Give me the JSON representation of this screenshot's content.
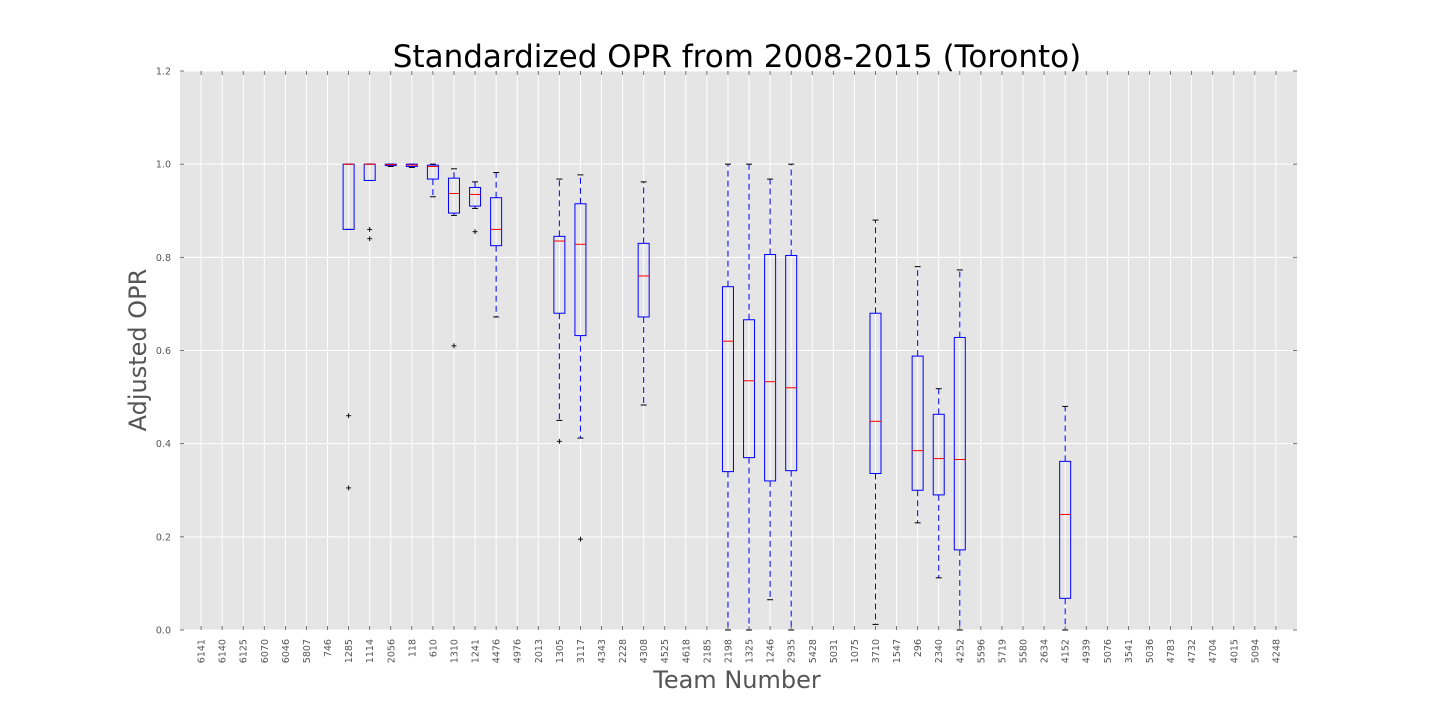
{
  "chart_data": {
    "type": "box",
    "title": "Standardized OPR from 2008-2015 (Toronto)",
    "xlabel": "Team Number",
    "ylabel": "Adjusted OPR",
    "ylim": [
      0.0,
      1.2
    ],
    "yticks": [
      "0.0",
      "0.2",
      "0.4",
      "0.6",
      "0.8",
      "1.0",
      "1.2"
    ],
    "grid": true,
    "categories": [
      "6141",
      "6140",
      "6125",
      "6070",
      "6046",
      "5807",
      "746",
      "1285",
      "1114",
      "2056",
      "118",
      "610",
      "1310",
      "1241",
      "4476",
      "4976",
      "2013",
      "1305",
      "3117",
      "4343",
      "2228",
      "4308",
      "4525",
      "4618",
      "2185",
      "2198",
      "1325",
      "1246",
      "2935",
      "5428",
      "5031",
      "1075",
      "3710",
      "1547",
      "296",
      "2340",
      "4252",
      "5596",
      "5719",
      "5580",
      "2634",
      "4152",
      "4939",
      "5076",
      "3541",
      "5036",
      "4783",
      "4732",
      "4704",
      "4015",
      "5094",
      "4248"
    ],
    "boxes": [
      {
        "team": "1285",
        "whislo": 0.86,
        "q1": 0.86,
        "med": 1.0,
        "q3": 1.0,
        "whishi": 1.0,
        "fliers": [
          0.46,
          0.305
        ]
      },
      {
        "team": "1114",
        "whislo": 0.965,
        "q1": 0.965,
        "med": 1.0,
        "q3": 1.0,
        "whishi": 1.0,
        "fliers": [
          0.86,
          0.84
        ]
      },
      {
        "team": "2056",
        "whislo": 0.995,
        "q1": 0.997,
        "med": 0.999,
        "q3": 1.0,
        "whishi": 1.0,
        "fliers": []
      },
      {
        "team": "118",
        "whislo": 0.993,
        "q1": 0.995,
        "med": 0.998,
        "q3": 1.0,
        "whishi": 1.0,
        "fliers": []
      },
      {
        "team": "610",
        "whislo": 0.93,
        "q1": 0.968,
        "med": 0.995,
        "q3": 0.998,
        "whishi": 1.0,
        "fliers": []
      },
      {
        "team": "1310",
        "whislo": 0.89,
        "q1": 0.895,
        "med": 0.937,
        "q3": 0.97,
        "whishi": 0.99,
        "fliers": [
          0.61
        ]
      },
      {
        "team": "1241",
        "whislo": 0.905,
        "q1": 0.91,
        "med": 0.935,
        "q3": 0.95,
        "whishi": 0.962,
        "fliers": [
          0.855
        ]
      },
      {
        "team": "4476",
        "whislo": 0.672,
        "q1": 0.825,
        "med": 0.86,
        "q3": 0.928,
        "whishi": 0.982,
        "fliers": []
      },
      {
        "team": "1305",
        "whislo": 0.45,
        "q1": 0.68,
        "med": 0.835,
        "q3": 0.845,
        "whishi": 0.968,
        "fliers": [
          0.405
        ]
      },
      {
        "team": "3117",
        "whislo": 0.412,
        "q1": 0.632,
        "med": 0.828,
        "q3": 0.915,
        "whishi": 0.977,
        "fliers": [
          0.195
        ]
      },
      {
        "team": "4308",
        "whislo": 0.483,
        "q1": 0.672,
        "med": 0.76,
        "q3": 0.83,
        "whishi": 0.962,
        "fliers": []
      },
      {
        "team": "2198",
        "whislo": 0.0,
        "q1": 0.34,
        "med": 0.62,
        "q3": 0.737,
        "whishi": 1.0,
        "fliers": []
      },
      {
        "team": "1325",
        "whislo": 0.0,
        "q1": 0.37,
        "med": 0.535,
        "q3": 0.666,
        "whishi": 1.0,
        "fliers": []
      },
      {
        "team": "1246",
        "whislo": 0.065,
        "q1": 0.32,
        "med": 0.533,
        "q3": 0.806,
        "whishi": 0.968,
        "fliers": []
      },
      {
        "team": "2935",
        "whislo": 0.0,
        "q1": 0.342,
        "med": 0.52,
        "q3": 0.804,
        "whishi": 1.0,
        "fliers": []
      },
      {
        "team": "3710",
        "whislo": 0.012,
        "q1": 0.336,
        "med": 0.448,
        "q3": 0.68,
        "whishi": 0.88,
        "fliers": []
      },
      {
        "team": "296",
        "whislo": 0.23,
        "q1": 0.3,
        "med": 0.385,
        "q3": 0.588,
        "whishi": 0.78,
        "fliers": []
      },
      {
        "team": "2340",
        "whislo": 0.112,
        "q1": 0.29,
        "med": 0.368,
        "q3": 0.463,
        "whishi": 0.518,
        "fliers": []
      },
      {
        "team": "4252",
        "whislo": 0.0,
        "q1": 0.172,
        "med": 0.366,
        "q3": 0.628,
        "whishi": 0.773,
        "fliers": []
      },
      {
        "team": "4152",
        "whislo": 0.0,
        "q1": 0.068,
        "med": 0.248,
        "q3": 0.362,
        "whishi": 0.48,
        "fliers": []
      }
    ],
    "colors": {
      "background": "#e5e5e5",
      "grid": "#ffffff",
      "box": "#0000ff",
      "median": "#ff0000",
      "flier": "#000000",
      "text": "#555555"
    }
  }
}
